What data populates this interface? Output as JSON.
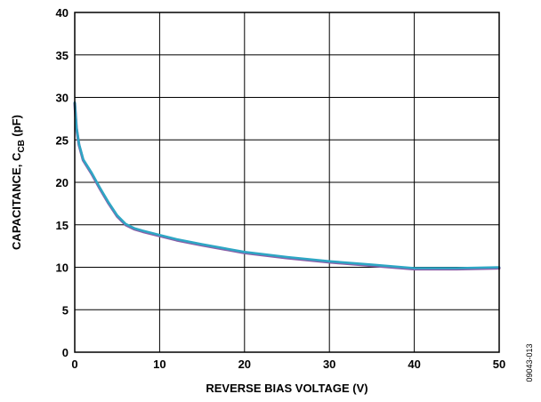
{
  "chart_data": {
    "type": "line",
    "title": "",
    "xlabel": "REVERSE BIAS VOLTAGE (V)",
    "ylabel_parts": {
      "prefix": "CAPACITANCE, C",
      "subscript": "CB",
      "suffix": " (pF)"
    },
    "xlim": [
      0,
      50
    ],
    "ylim": [
      0,
      40
    ],
    "xticks": [
      0,
      10,
      20,
      30,
      40,
      50
    ],
    "yticks": [
      0,
      5,
      10,
      15,
      20,
      25,
      30,
      35,
      40
    ],
    "grid": true,
    "legend": "none",
    "figure_id": "09043-013",
    "series": [
      {
        "color": "#2ea6c4",
        "under_color": "#8a5fa8",
        "x": [
          0,
          0.2,
          0.5,
          1,
          2,
          3,
          4,
          5,
          6,
          7,
          8,
          10,
          12,
          15,
          20,
          25,
          30,
          35,
          40,
          45,
          50
        ],
        "y": [
          29.4,
          26.5,
          24.5,
          22.7,
          21.1,
          19.3,
          17.6,
          16.1,
          15.1,
          14.6,
          14.3,
          13.8,
          13.3,
          12.7,
          11.8,
          11.2,
          10.7,
          10.3,
          9.9,
          9.9,
          10.0
        ]
      }
    ]
  }
}
